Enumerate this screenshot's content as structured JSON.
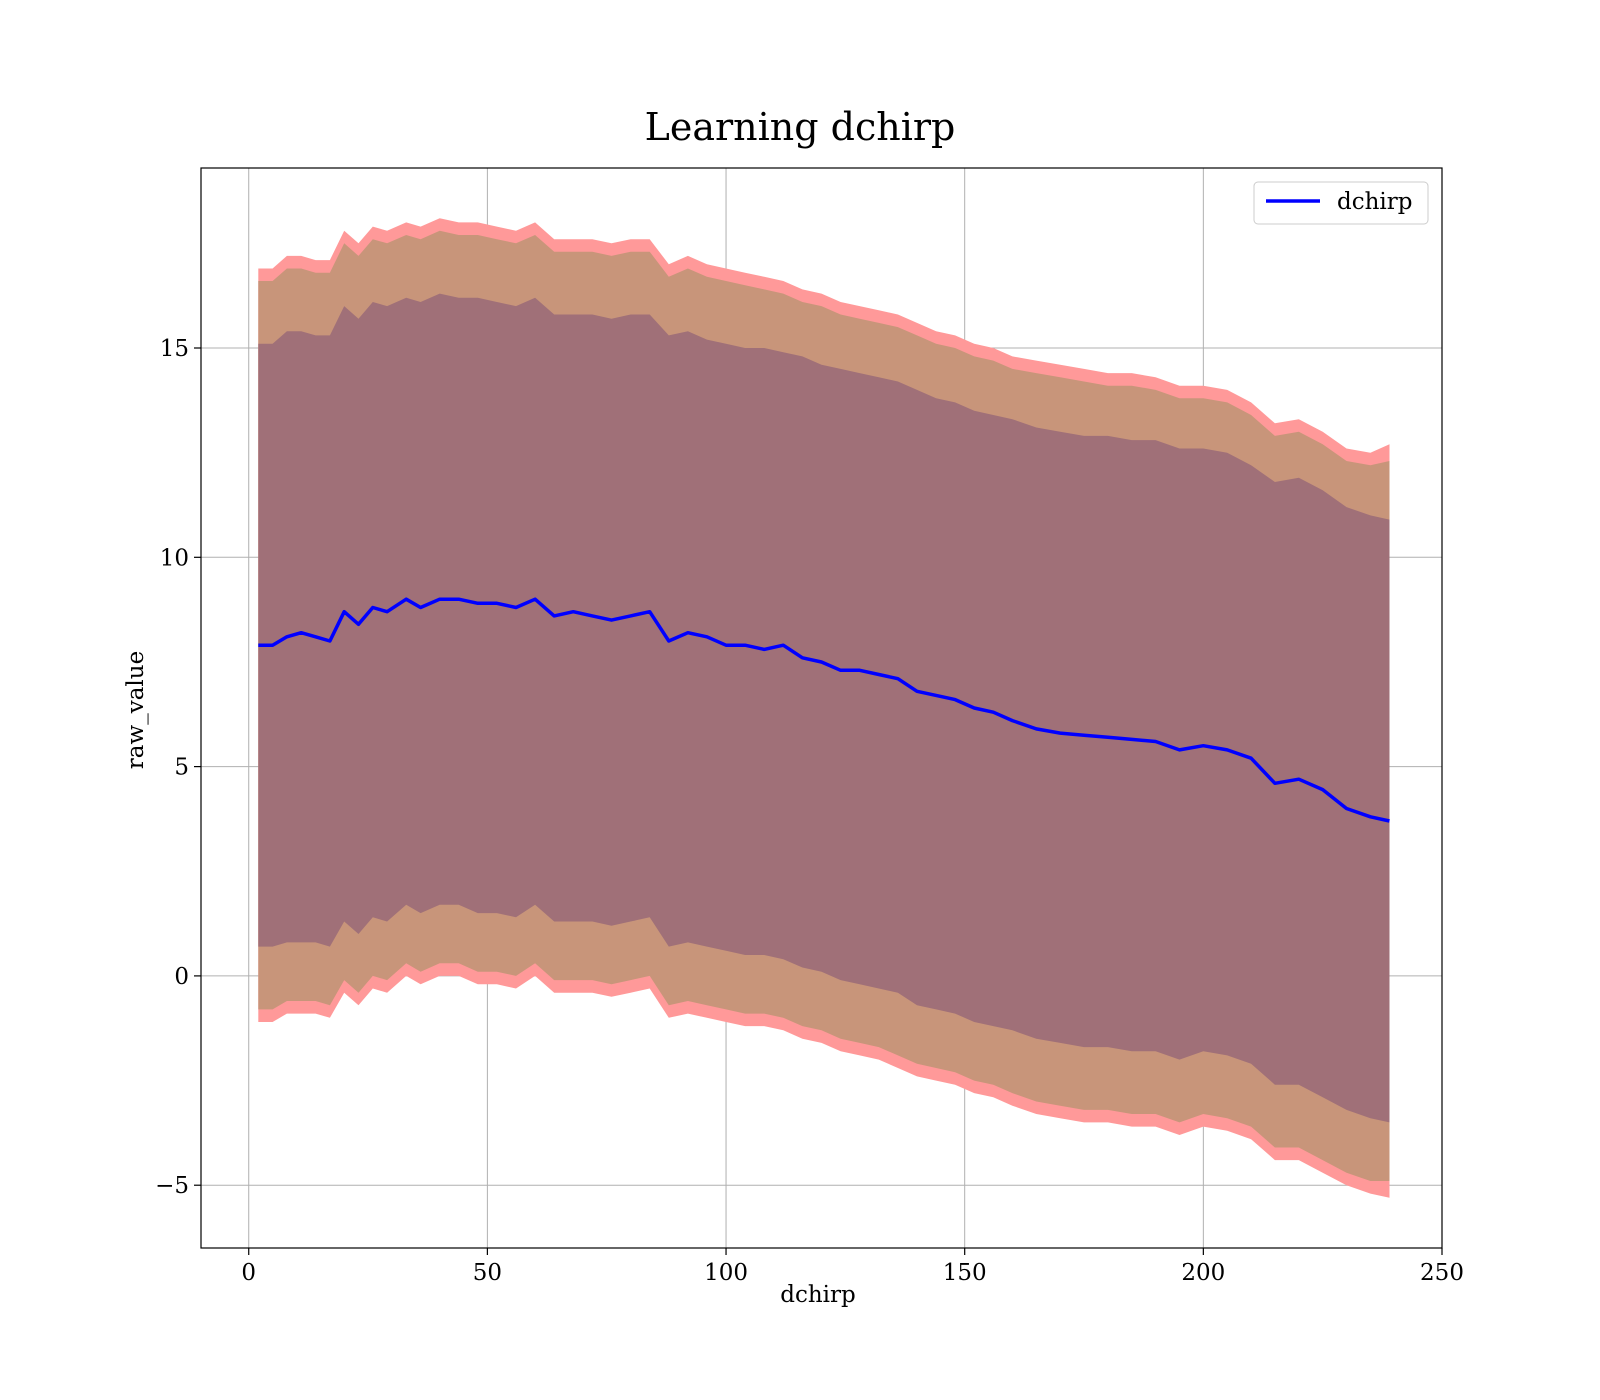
{
  "chart_data": {
    "type": "line",
    "title": "Learning dchirp",
    "xlabel": "dchirp",
    "ylabel": "raw_value",
    "xlim": [
      -10,
      250
    ],
    "ylim": [
      -6.5,
      19.3
    ],
    "xticks": [
      0,
      50,
      100,
      150,
      200,
      250
    ],
    "yticks": [
      -5,
      0,
      5,
      10,
      15
    ],
    "ytick_labels": [
      "−5",
      "0",
      "5",
      "10",
      "15"
    ],
    "grid": true,
    "legend": {
      "position": "top-right",
      "entries": [
        "dchirp"
      ]
    },
    "colors": {
      "line": "#0000ff",
      "outer_band": "#ff9999",
      "inner_band": "#a07078",
      "middle_band": "#c8957a"
    },
    "series": [
      {
        "name": "dchirp",
        "x": [
          2,
          5,
          8,
          11,
          14,
          17,
          20,
          23,
          26,
          29,
          33,
          36,
          40,
          44,
          48,
          52,
          56,
          60,
          64,
          68,
          72,
          76,
          80,
          84,
          88,
          92,
          96,
          100,
          104,
          108,
          112,
          116,
          120,
          124,
          128,
          132,
          136,
          140,
          144,
          148,
          152,
          156,
          160,
          165,
          170,
          175,
          180,
          185,
          190,
          195,
          200,
          205,
          210,
          215,
          220,
          225,
          230,
          235,
          239
        ],
        "y": [
          7.9,
          7.9,
          8.1,
          8.2,
          8.1,
          8.0,
          8.7,
          8.4,
          8.8,
          8.7,
          9.0,
          8.8,
          9.0,
          9.0,
          8.9,
          8.9,
          8.8,
          9.0,
          8.6,
          8.7,
          8.6,
          8.5,
          8.6,
          8.7,
          8.0,
          8.2,
          8.1,
          7.9,
          7.9,
          7.8,
          7.9,
          7.6,
          7.5,
          7.3,
          7.3,
          7.2,
          7.1,
          6.8,
          6.7,
          6.6,
          6.4,
          6.3,
          6.1,
          5.9,
          5.8,
          5.75,
          5.7,
          5.65,
          5.6,
          5.4,
          5.5,
          5.4,
          5.2,
          4.6,
          4.7,
          4.45,
          4.0,
          3.8,
          3.7
        ],
        "band_inner_upper": [
          15.1,
          15.1,
          15.4,
          15.4,
          15.3,
          15.3,
          16.0,
          15.7,
          16.1,
          16.0,
          16.2,
          16.1,
          16.3,
          16.2,
          16.2,
          16.1,
          16.0,
          16.2,
          15.8,
          15.8,
          15.8,
          15.7,
          15.8,
          15.8,
          15.3,
          15.4,
          15.2,
          15.1,
          15.0,
          15.0,
          14.9,
          14.8,
          14.6,
          14.5,
          14.4,
          14.3,
          14.2,
          14.0,
          13.8,
          13.7,
          13.5,
          13.4,
          13.3,
          13.1,
          13.0,
          12.9,
          12.9,
          12.8,
          12.8,
          12.6,
          12.6,
          12.5,
          12.2,
          11.8,
          11.9,
          11.6,
          11.2,
          11.0,
          10.9
        ],
        "band_inner_lower": [
          0.7,
          0.7,
          0.8,
          0.8,
          0.8,
          0.7,
          1.3,
          1.0,
          1.4,
          1.3,
          1.7,
          1.5,
          1.7,
          1.7,
          1.5,
          1.5,
          1.4,
          1.7,
          1.3,
          1.3,
          1.3,
          1.2,
          1.3,
          1.4,
          0.7,
          0.8,
          0.7,
          0.6,
          0.5,
          0.5,
          0.4,
          0.2,
          0.1,
          -0.1,
          -0.2,
          -0.3,
          -0.4,
          -0.7,
          -0.8,
          -0.9,
          -1.1,
          -1.2,
          -1.3,
          -1.5,
          -1.6,
          -1.7,
          -1.7,
          -1.8,
          -1.8,
          -2.0,
          -1.8,
          -1.9,
          -2.1,
          -2.6,
          -2.6,
          -2.9,
          -3.2,
          -3.4,
          -3.5
        ],
        "band_mid_upper": [
          16.6,
          16.6,
          16.9,
          16.9,
          16.8,
          16.8,
          17.5,
          17.2,
          17.6,
          17.5,
          17.7,
          17.6,
          17.8,
          17.7,
          17.7,
          17.6,
          17.5,
          17.7,
          17.3,
          17.3,
          17.3,
          17.2,
          17.3,
          17.3,
          16.7,
          16.9,
          16.7,
          16.6,
          16.5,
          16.4,
          16.3,
          16.1,
          16.0,
          15.8,
          15.7,
          15.6,
          15.5,
          15.3,
          15.1,
          15.0,
          14.8,
          14.7,
          14.5,
          14.4,
          14.3,
          14.2,
          14.1,
          14.1,
          14.0,
          13.8,
          13.8,
          13.7,
          13.4,
          12.9,
          13.0,
          12.7,
          12.3,
          12.2,
          12.3
        ],
        "band_mid_lower": [
          -0.8,
          -0.8,
          -0.6,
          -0.6,
          -0.6,
          -0.7,
          -0.1,
          -0.4,
          0.0,
          -0.1,
          0.3,
          0.1,
          0.3,
          0.3,
          0.1,
          0.1,
          0.0,
          0.3,
          -0.1,
          -0.1,
          -0.1,
          -0.2,
          -0.1,
          0.0,
          -0.7,
          -0.6,
          -0.7,
          -0.8,
          -0.9,
          -0.9,
          -1.0,
          -1.2,
          -1.3,
          -1.5,
          -1.6,
          -1.7,
          -1.9,
          -2.1,
          -2.2,
          -2.3,
          -2.5,
          -2.6,
          -2.8,
          -3.0,
          -3.1,
          -3.2,
          -3.2,
          -3.3,
          -3.3,
          -3.5,
          -3.3,
          -3.4,
          -3.6,
          -4.1,
          -4.1,
          -4.4,
          -4.7,
          -4.9,
          -4.9
        ],
        "band_outer_upper": [
          16.9,
          16.9,
          17.2,
          17.2,
          17.1,
          17.1,
          17.8,
          17.5,
          17.9,
          17.8,
          18.0,
          17.9,
          18.1,
          18.0,
          18.0,
          17.9,
          17.8,
          18.0,
          17.6,
          17.6,
          17.6,
          17.5,
          17.6,
          17.6,
          17.0,
          17.2,
          17.0,
          16.9,
          16.8,
          16.7,
          16.6,
          16.4,
          16.3,
          16.1,
          16.0,
          15.9,
          15.8,
          15.6,
          15.4,
          15.3,
          15.1,
          15.0,
          14.8,
          14.7,
          14.6,
          14.5,
          14.4,
          14.4,
          14.3,
          14.1,
          14.1,
          14.0,
          13.7,
          13.2,
          13.3,
          13.0,
          12.6,
          12.5,
          12.7
        ],
        "band_outer_lower": [
          -1.1,
          -1.1,
          -0.9,
          -0.9,
          -0.9,
          -1.0,
          -0.4,
          -0.7,
          -0.3,
          -0.4,
          0.0,
          -0.2,
          0.0,
          0.0,
          -0.2,
          -0.2,
          -0.3,
          0.0,
          -0.4,
          -0.4,
          -0.4,
          -0.5,
          -0.4,
          -0.3,
          -1.0,
          -0.9,
          -1.0,
          -1.1,
          -1.2,
          -1.2,
          -1.3,
          -1.5,
          -1.6,
          -1.8,
          -1.9,
          -2.0,
          -2.2,
          -2.4,
          -2.5,
          -2.6,
          -2.8,
          -2.9,
          -3.1,
          -3.3,
          -3.4,
          -3.5,
          -3.5,
          -3.6,
          -3.6,
          -3.8,
          -3.6,
          -3.7,
          -3.9,
          -4.4,
          -4.4,
          -4.7,
          -5.0,
          -5.2,
          -5.3
        ]
      }
    ]
  }
}
